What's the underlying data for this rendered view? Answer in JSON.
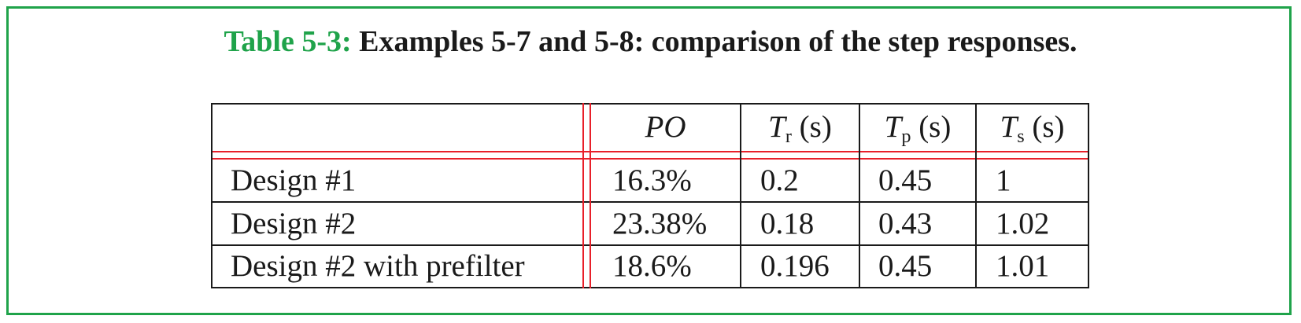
{
  "caption": {
    "label": "Table 5-3:",
    "text": "Examples 5-7 and 5-8: comparison of the step responses."
  },
  "colors": {
    "border": "#1fa34a",
    "label": "#1fa34a",
    "rule": "#e8202a"
  },
  "table": {
    "headers": {
      "po": "PO",
      "tr": {
        "symbol": "T",
        "sub": "r",
        "unit": "(s)"
      },
      "tp": {
        "symbol": "T",
        "sub": "p",
        "unit": "(s)"
      },
      "ts": {
        "symbol": "T",
        "sub": "s",
        "unit": "(s)"
      }
    },
    "rows": [
      {
        "name": "Design #1",
        "po": "16.3%",
        "tr": "0.2",
        "tp": "0.45",
        "ts": "1"
      },
      {
        "name": "Design #2",
        "po": "23.38%",
        "tr": "0.18",
        "tp": "0.43",
        "ts": "1.02"
      },
      {
        "name": "Design #2 with prefilter",
        "po": "18.6%",
        "tr": "0.196",
        "tp": "0.45",
        "ts": "1.01"
      }
    ]
  }
}
